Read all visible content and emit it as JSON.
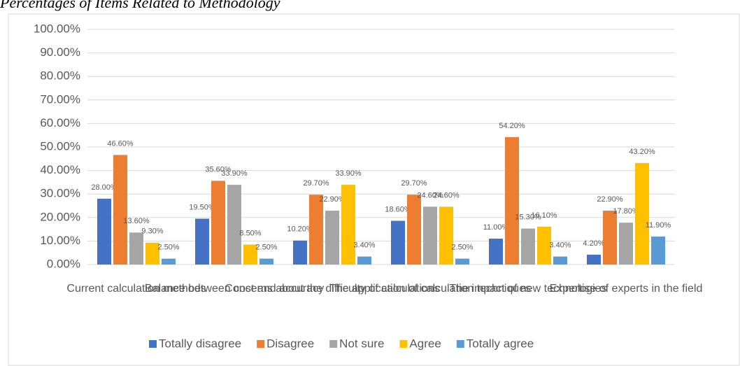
{
  "chart_data": {
    "type": "bar",
    "title": "Percentages of Items Related to Methodology",
    "categories": [
      "Current calculation methods",
      "Balance between cost and accuracy",
      "Concerns about the difficulty of calculations",
      "The application of calculation techniques",
      "The impact of new technologies",
      "Expertise of experts in the field"
    ],
    "series": [
      {
        "name": "Totally disagree",
        "color": "#4472c4",
        "values": [
          28.0,
          19.5,
          10.2,
          18.6,
          11.0,
          4.2
        ],
        "value_labels": [
          "28.00%",
          "19.50%",
          "10.20%",
          "18.60%",
          "11.00%",
          "4.20%"
        ]
      },
      {
        "name": "Disagree",
        "color": "#ed7d31",
        "values": [
          46.6,
          35.6,
          29.7,
          29.7,
          54.2,
          22.9
        ],
        "value_labels": [
          "46.60%",
          "35.60%",
          "29.70%",
          "29.70%",
          "54.20%",
          "22.90%"
        ]
      },
      {
        "name": "Not sure",
        "color": "#a5a5a5",
        "values": [
          13.6,
          33.9,
          22.9,
          24.6,
          15.3,
          17.8
        ],
        "value_labels": [
          "13.60%",
          "33.90%",
          "22.90%",
          "24.60%",
          "15.30%",
          "17.80%"
        ]
      },
      {
        "name": "Agree",
        "color": "#ffc000",
        "values": [
          9.3,
          8.5,
          33.9,
          24.6,
          16.1,
          43.2
        ],
        "value_labels": [
          "9.30%",
          "8.50%",
          "33.90%",
          "24.60%",
          "16.10%",
          "43.20%"
        ]
      },
      {
        "name": "Totally agree",
        "color": "#5b9bd5",
        "values": [
          2.5,
          2.5,
          3.4,
          2.5,
          3.4,
          11.9
        ],
        "value_labels": [
          "2.50%",
          "2.50%",
          "3.40%",
          "2.50%",
          "3.40%",
          "11.90%"
        ]
      }
    ],
    "ylim": [
      0,
      100
    ],
    "yticks": [
      {
        "value": 0,
        "label": "0.00%"
      },
      {
        "value": 10,
        "label": "10.00%"
      },
      {
        "value": 20,
        "label": "20.00%"
      },
      {
        "value": 30,
        "label": "30.00%"
      },
      {
        "value": 40,
        "label": "40.00%"
      },
      {
        "value": 50,
        "label": "50.00%"
      },
      {
        "value": 60,
        "label": "60.00%"
      },
      {
        "value": 70,
        "label": "70.00%"
      },
      {
        "value": 80,
        "label": "80.00%"
      },
      {
        "value": 90,
        "label": "90.00%"
      },
      {
        "value": 100,
        "label": "100.00%"
      }
    ],
    "grid": true,
    "legend": "bottom"
  }
}
